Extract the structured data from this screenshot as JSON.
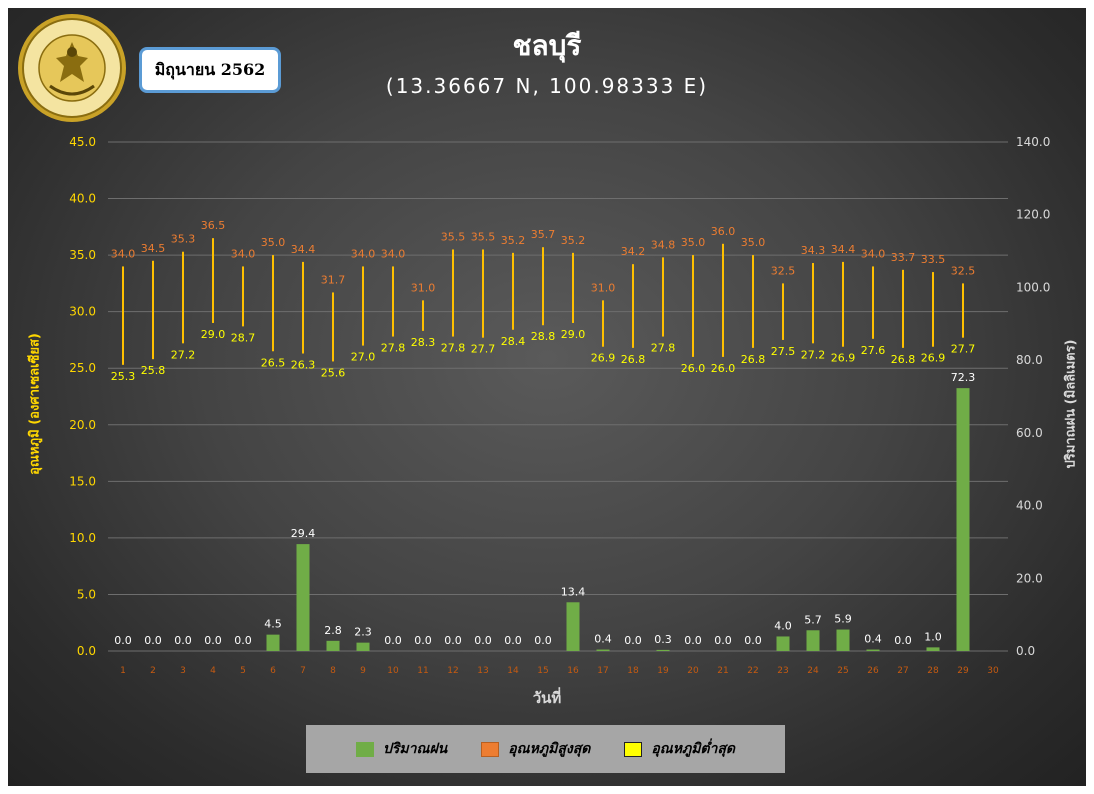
{
  "header": {
    "title": "ชลบุรี",
    "subtitle": "(13.36667 N, 100.98333 E)",
    "month": "มิถุนายน 2562",
    "logo_text": "กรมอุตุนิยมวิทยา · METEOROLOGICAL DEPARTMENT"
  },
  "colors": {
    "rain": "#70ad47",
    "tmax_label": "#ed7d31",
    "tmin_label": "#ffff00",
    "range_line": "#ffc000",
    "axis_left": "#ffd700",
    "axis_right": "#d9d9d9"
  },
  "chart_data": {
    "type": "bar",
    "title": "ชลบุรี",
    "xlabel": "วันที่",
    "ylabel_left": "อุณหภูมิ (องศาเซลเซียส)",
    "ylabel_right": "ปริมาณฝน (มิลลิเมตร)",
    "ylim_left": [
      0,
      45
    ],
    "ylim_right": [
      0,
      140
    ],
    "yticks_left": [
      "0.0",
      "5.0",
      "10.0",
      "15.0",
      "20.0",
      "25.0",
      "30.0",
      "35.0",
      "40.0",
      "45.0"
    ],
    "yticks_right": [
      "0.0",
      "20.0",
      "40.0",
      "60.0",
      "80.0",
      "100.0",
      "120.0",
      "140.0"
    ],
    "days": [
      1,
      2,
      3,
      4,
      5,
      6,
      7,
      8,
      9,
      10,
      11,
      12,
      13,
      14,
      15,
      16,
      17,
      18,
      19,
      20,
      21,
      22,
      23,
      24,
      25,
      26,
      27,
      28,
      29,
      30
    ],
    "legend_position": "bottom",
    "grid": true,
    "series": [
      {
        "name": "ปริมาณฝน",
        "axis": "right",
        "kind": "bar",
        "values": [
          0.0,
          0.0,
          0.0,
          0.0,
          0.0,
          4.5,
          29.4,
          2.8,
          2.3,
          0.0,
          0.0,
          0.0,
          0.0,
          0.0,
          0.0,
          13.4,
          0.4,
          0.0,
          0.3,
          0.0,
          0.0,
          0.0,
          4.0,
          5.7,
          5.9,
          0.4,
          0.0,
          1.0,
          72.3,
          null
        ]
      },
      {
        "name": "อุณหภูมิสูงสุด",
        "axis": "left",
        "kind": "high",
        "values": [
          34.0,
          34.5,
          35.3,
          36.5,
          34.0,
          35.0,
          34.4,
          31.7,
          34.0,
          34.0,
          31.0,
          35.5,
          35.5,
          35.2,
          35.7,
          35.2,
          31.0,
          34.2,
          34.8,
          35.0,
          36.0,
          35.0,
          32.5,
          34.3,
          34.4,
          34.0,
          33.7,
          33.5,
          32.5,
          null
        ]
      },
      {
        "name": "อุณหภูมิต่ำสุด",
        "axis": "left",
        "kind": "low",
        "values": [
          25.3,
          25.8,
          27.2,
          29.0,
          28.7,
          26.5,
          26.3,
          25.6,
          27.0,
          27.8,
          28.3,
          27.8,
          27.7,
          28.4,
          28.8,
          29.0,
          26.9,
          26.8,
          27.8,
          26.0,
          26.0,
          26.8,
          27.5,
          27.2,
          26.9,
          27.6,
          26.8,
          26.9,
          27.7,
          null
        ]
      }
    ]
  }
}
